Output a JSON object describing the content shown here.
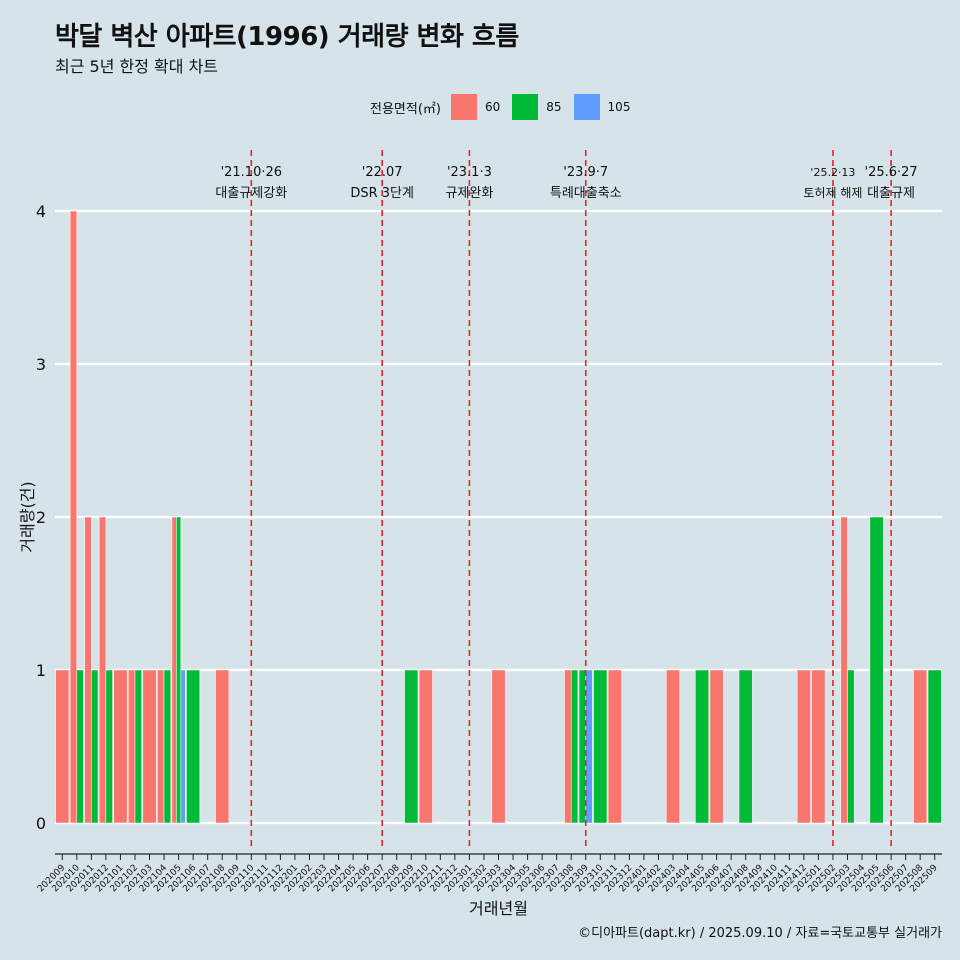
{
  "title": "박달 벽산 아파트(1996) 거래량 변화 흐름",
  "subtitle": "최근 5년 한정 확대 차트",
  "caption": "©디아파트(dapt.kr) / 2025.09.10 / 자료=국토교통부 실거래가",
  "legend": {
    "title": "전용면적(㎡)",
    "items": [
      {
        "name": "60",
        "color": "#f8766d"
      },
      {
        "name": "85",
        "color": "#00ba38"
      },
      {
        "name": "105",
        "color": "#619cff"
      }
    ]
  },
  "chart_data": {
    "type": "bar",
    "xlabel": "거래년월",
    "ylabel": "거래량(건)",
    "ylim": [
      0,
      4
    ],
    "yticks": [
      0,
      1,
      2,
      3,
      4
    ],
    "categories": [
      "202009",
      "202010",
      "202011",
      "202012",
      "202101",
      "202102",
      "202103",
      "202104",
      "202105",
      "202106",
      "202107",
      "202108",
      "202109",
      "202110",
      "202111",
      "202112",
      "202201",
      "202202",
      "202203",
      "202204",
      "202205",
      "202206",
      "202207",
      "202208",
      "202209",
      "202210",
      "202211",
      "202212",
      "202301",
      "202302",
      "202303",
      "202304",
      "202305",
      "202306",
      "202307",
      "202308",
      "202309",
      "202310",
      "202311",
      "202312",
      "202401",
      "202402",
      "202403",
      "202404",
      "202405",
      "202406",
      "202407",
      "202408",
      "202409",
      "202410",
      "202411",
      "202412",
      "202501",
      "202502",
      "202503",
      "202504",
      "202505",
      "202506",
      "202507",
      "202508",
      "202509"
    ],
    "series": [
      {
        "name": "60",
        "color": "#f8766d",
        "values": [
          1,
          4,
          2,
          2,
          1,
          1,
          1,
          1,
          2,
          0,
          0,
          1,
          0,
          0,
          0,
          0,
          0,
          0,
          0,
          0,
          0,
          0,
          0,
          0,
          0,
          1,
          0,
          0,
          0,
          0,
          1,
          0,
          0,
          0,
          0,
          1,
          0,
          0,
          1,
          0,
          0,
          0,
          1,
          0,
          0,
          1,
          0,
          0,
          0,
          0,
          0,
          1,
          1,
          0,
          2,
          0,
          0,
          0,
          0,
          1,
          0
        ]
      },
      {
        "name": "85",
        "color": "#00ba38",
        "values": [
          0,
          1,
          1,
          1,
          0,
          1,
          0,
          1,
          2,
          1,
          0,
          0,
          0,
          0,
          0,
          0,
          0,
          0,
          0,
          0,
          0,
          0,
          0,
          0,
          1,
          0,
          0,
          0,
          0,
          0,
          0,
          0,
          0,
          0,
          0,
          1,
          1,
          1,
          0,
          0,
          0,
          0,
          0,
          0,
          1,
          0,
          0,
          1,
          0,
          0,
          0,
          0,
          0,
          0,
          1,
          0,
          2,
          0,
          0,
          0,
          1
        ]
      },
      {
        "name": "105",
        "color": "#619cff",
        "values": [
          0,
          0,
          0,
          0,
          0,
          0,
          0,
          0,
          1,
          0,
          0,
          0,
          0,
          0,
          0,
          0,
          0,
          0,
          0,
          0,
          0,
          0,
          0,
          0,
          0,
          0,
          0,
          0,
          0,
          0,
          0,
          0,
          0,
          0,
          0,
          0,
          1,
          0,
          0,
          0,
          0,
          0,
          0,
          0,
          0,
          0,
          0,
          0,
          0,
          0,
          0,
          0,
          0,
          0,
          0,
          0,
          0,
          0,
          0,
          0,
          0
        ]
      }
    ],
    "annotations": [
      {
        "x": "202110",
        "date": "'21.10·26",
        "label": "대출규제강화"
      },
      {
        "x": "202207",
        "date": "'22.07",
        "label": "DSR 3단계"
      },
      {
        "x": "202301",
        "date": "'23.1·3",
        "label": "규제완화"
      },
      {
        "x": "202309",
        "date": "'23.9·7",
        "label": "특례대출축소"
      },
      {
        "x": "202502",
        "date": "'25.2·13",
        "label": "토허제 해제"
      },
      {
        "x": "202506",
        "date": "'25.6·27",
        "label": "대출규제"
      }
    ]
  }
}
